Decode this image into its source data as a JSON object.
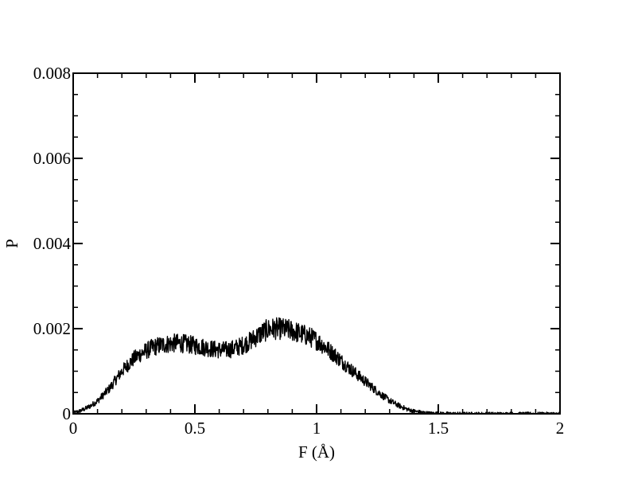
{
  "chart_data": {
    "type": "line",
    "title": "",
    "xlabel": "F (Å)",
    "ylabel": "P",
    "xlim": [
      0,
      2
    ],
    "ylim": [
      0,
      0.008
    ],
    "x_major_ticks": [
      0,
      0.5,
      1,
      1.5,
      2
    ],
    "x_tick_labels": [
      "0",
      "0.5",
      "1",
      "1.5",
      "2"
    ],
    "x_minor_step": 0.1,
    "y_major_ticks": [
      0,
      0.002,
      0.004,
      0.006,
      0.008
    ],
    "y_tick_labels": [
      "0",
      "0.002",
      "0.004",
      "0.006",
      "0.008"
    ],
    "y_minor_step": 0.0005,
    "grid": false,
    "legend": "none",
    "line_color": "#000000",
    "series": [
      {
        "name": "",
        "x": [
          0,
          0.025,
          0.05,
          0.075,
          0.1,
          0.125,
          0.15,
          0.175,
          0.2,
          0.225,
          0.25,
          0.275,
          0.3,
          0.325,
          0.35,
          0.375,
          0.4,
          0.425,
          0.45,
          0.475,
          0.5,
          0.525,
          0.55,
          0.575,
          0.6,
          0.625,
          0.65,
          0.675,
          0.7,
          0.725,
          0.75,
          0.775,
          0.8,
          0.825,
          0.85,
          0.875,
          0.9,
          0.925,
          0.95,
          0.975,
          1.0,
          1.025,
          1.05,
          1.075,
          1.1,
          1.125,
          1.15,
          1.175,
          1.2,
          1.225,
          1.25,
          1.275,
          1.3,
          1.325,
          1.35,
          1.375,
          1.4,
          1.425,
          1.45,
          1.475,
          1.5,
          1.525,
          1.55,
          1.575,
          1.6,
          1.625,
          1.65,
          1.675,
          1.7,
          1.75,
          1.8,
          1.9,
          2.0
        ],
        "y": [
          2e-05,
          6e-05,
          0.00012,
          0.0002,
          0.0003,
          0.00045,
          0.0006,
          0.0008,
          0.001,
          0.00115,
          0.0013,
          0.0014,
          0.00148,
          0.00155,
          0.0016,
          0.00163,
          0.00165,
          0.00166,
          0.00165,
          0.00163,
          0.0016,
          0.00158,
          0.00155,
          0.00152,
          0.0015,
          0.0015,
          0.00152,
          0.00156,
          0.00162,
          0.0017,
          0.0018,
          0.0019,
          0.00198,
          0.002,
          0.002,
          0.00198,
          0.00195,
          0.0019,
          0.00185,
          0.0018,
          0.00172,
          0.00162,
          0.0015,
          0.00138,
          0.00125,
          0.00112,
          0.001,
          0.00088,
          0.00076,
          0.00064,
          0.00052,
          0.00041,
          0.00031,
          0.00023,
          0.00016,
          0.0001,
          6e-05,
          4e-05,
          2e-05,
          1e-05,
          1e-05,
          5e-06,
          3e-06,
          2e-06,
          1e-06,
          0,
          0,
          0,
          0,
          0,
          0,
          0,
          0
        ]
      }
    ]
  }
}
